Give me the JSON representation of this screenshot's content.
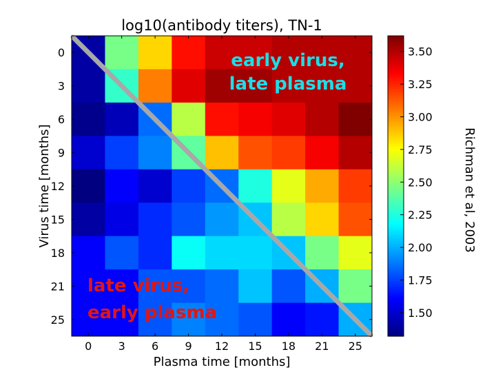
{
  "chart_data": {
    "type": "heatmap",
    "title": "log10(antibody titers), TN-1",
    "xlabel": "Plasma time [months]",
    "ylabel": "Virus time [months]",
    "x_categories": [
      "0",
      "3",
      "6",
      "9",
      "12",
      "15",
      "18",
      "21",
      "25"
    ],
    "y_categories": [
      "0",
      "3",
      "6",
      "9",
      "12",
      "15",
      "18",
      "21",
      "25"
    ],
    "values": [
      [
        1.4,
        2.45,
        2.85,
        3.3,
        3.45,
        3.45,
        3.5,
        3.5,
        3.5
      ],
      [
        1.4,
        2.3,
        3.05,
        3.4,
        3.55,
        3.55,
        3.5,
        3.5,
        3.5
      ],
      [
        1.35,
        1.45,
        1.85,
        2.6,
        3.3,
        3.35,
        3.4,
        3.5,
        3.65
      ],
      [
        1.5,
        1.75,
        1.9,
        2.4,
        2.9,
        3.15,
        3.2,
        3.35,
        3.5
      ],
      [
        1.3,
        1.6,
        1.5,
        1.75,
        1.85,
        2.25,
        2.7,
        2.95,
        3.2
      ],
      [
        1.4,
        1.55,
        1.7,
        1.8,
        1.95,
        2.05,
        2.6,
        2.85,
        3.15
      ],
      [
        1.6,
        1.8,
        1.7,
        2.2,
        2.1,
        2.1,
        2.05,
        2.45,
        2.7
      ],
      [
        1.6,
        1.6,
        1.8,
        1.8,
        1.85,
        2.05,
        1.8,
        2.0,
        2.45
      ],
      [
        1.6,
        1.6,
        1.8,
        1.9,
        1.85,
        1.8,
        1.6,
        1.65,
        2.0
      ]
    ],
    "colorbar": {
      "range": [
        1.32,
        3.62
      ],
      "ticks": [
        "1.50",
        "1.75",
        "2.00",
        "2.25",
        "2.50",
        "2.75",
        "3.00",
        "3.25",
        "3.50"
      ],
      "colormap": "jet"
    },
    "annotations": {
      "top_right_line1": "early virus,",
      "top_right_line2": "late plasma",
      "bottom_left_line1": "late virus,",
      "bottom_left_line2": "early plasma",
      "side_note": "Richman et al, 2003"
    },
    "diagonal_line_color": "#a8a8a8",
    "annotation_colors": {
      "top_right": "#19dfe8",
      "bottom_left": "#e01616"
    }
  }
}
